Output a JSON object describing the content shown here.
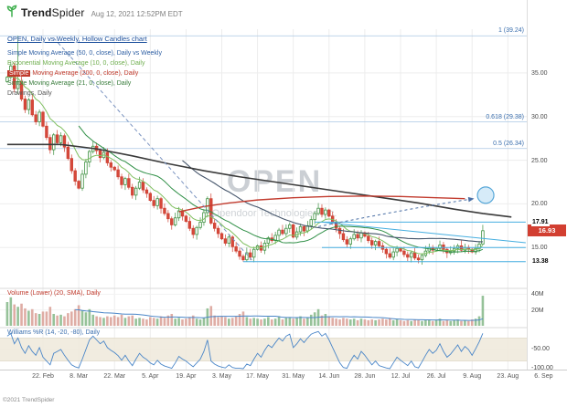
{
  "header": {
    "logo_bold": "Trend",
    "logo_rest": "Spider",
    "timestamp": "Aug 12, 2021 12:52PM EDT"
  },
  "footer": {
    "copyright": "©2021 TrendSpider"
  },
  "chart_labels": {
    "symbol_row": "OPEN, Daily vs Weekly, Hollow Candles chart",
    "indicators": [
      {
        "label": "Simple Moving Average (50, 0, close), Daily vs Weekly",
        "color": "#2e5fa3",
        "highlight": false
      },
      {
        "label": "Exponential Moving Average (10, 0, close), Daily",
        "color": "#6fae4e",
        "highlight": false
      },
      {
        "label": "Simple Moving Average (200, 0, close), Daily",
        "color": "#c0392b",
        "highlight": true
      },
      {
        "label": "Simple Moving Average (21, 0, close), Daily",
        "color": "#357a38",
        "highlight": false
      },
      {
        "label": "Drawings, Daily",
        "color": "#555555",
        "highlight": false
      }
    ],
    "volume_label": "Volume (Lower) (20, SMA), Daily",
    "wpr_label": "Williams %R (14, -20, -80), Daily"
  },
  "watermark": {
    "big": "OPEN",
    "small": "Opendoor Technologies Inc."
  },
  "chart_data": {
    "type": "candlestick",
    "title": "OPEN, Daily vs Weekly, Hollow Candles chart",
    "symbol": "OPEN",
    "last_price": 16.93,
    "last_price_label": "16.93",
    "ylim_price": [
      12,
      40
    ],
    "ylim_volume_m": [
      0,
      45
    ],
    "ylim_wpr": [
      -100,
      0
    ],
    "wpr_bands": [
      -20,
      -80
    ],
    "price_ticks": [
      {
        "p": 35,
        "label": "35.00"
      },
      {
        "p": 30,
        "label": "30.00"
      },
      {
        "p": 25,
        "label": "25.00"
      },
      {
        "p": 20,
        "label": "20.00"
      },
      {
        "p": 15,
        "label": "15.00"
      }
    ],
    "special_price_labels": [
      {
        "p": 17.91,
        "label": "17.91"
      },
      {
        "p": 13.38,
        "label": "13.38"
      }
    ],
    "volume_ticks": [
      {
        "v": 40,
        "label": "40M"
      },
      {
        "v": 20,
        "label": "20M"
      }
    ],
    "wpr_ticks": [
      {
        "w": -50,
        "label": "-50.00"
      },
      {
        "w": -100,
        "label": "-100.00"
      }
    ],
    "x_ticks": [
      {
        "d": 10,
        "label": "22. Feb"
      },
      {
        "d": 20,
        "label": "8. Mar"
      },
      {
        "d": 30,
        "label": "22. Mar"
      },
      {
        "d": 40,
        "label": "5. Apr"
      },
      {
        "d": 50,
        "label": "19. Apr"
      },
      {
        "d": 60,
        "label": "3. May"
      },
      {
        "d": 70,
        "label": "17. May"
      },
      {
        "d": 80,
        "label": "31. May"
      },
      {
        "d": 90,
        "label": "14. Jun"
      },
      {
        "d": 100,
        "label": "28. Jun"
      },
      {
        "d": 110,
        "label": "12. Jul"
      },
      {
        "d": 120,
        "label": "26. Jul"
      },
      {
        "d": 130,
        "label": "9. Aug"
      },
      {
        "d": 140,
        "label": "23. Aug"
      },
      {
        "d": 150,
        "label": "6. Sep"
      }
    ],
    "fib_levels": [
      {
        "p": 39.24,
        "label": "1 (39.24)"
      },
      {
        "p": 29.38,
        "label": "0.618 (29.38)"
      },
      {
        "p": 26.34,
        "label": "0.5 (26.34)"
      }
    ],
    "closes": [
      34.5,
      35.8,
      33.2,
      34.0,
      32.0,
      30.8,
      31.9,
      30.2,
      29.4,
      30.5,
      28.9,
      27.6,
      26.2,
      27.9,
      27.0,
      27.8,
      26.5,
      25.2,
      23.8,
      22.6,
      21.8,
      23.4,
      24.8,
      26.0,
      26.6,
      26.1,
      25.3,
      25.9,
      24.7,
      24.2,
      23.9,
      23.1,
      22.2,
      22.9,
      21.9,
      21.0,
      21.8,
      22.5,
      21.6,
      21.2,
      20.4,
      19.8,
      20.6,
      19.5,
      18.9,
      18.3,
      17.6,
      18.4,
      19.2,
      18.6,
      18.0,
      17.2,
      16.5,
      17.3,
      17.9,
      19.0,
      20.6,
      17.8,
      17.2,
      16.6,
      16.0,
      15.5,
      16.2,
      15.1,
      14.6,
      14.0,
      13.6,
      14.4,
      13.9,
      14.8,
      15.2,
      14.7,
      15.5,
      16.1,
      15.8,
      16.4,
      17.0,
      16.6,
      17.2,
      17.6,
      16.2,
      16.8,
      17.4,
      16.9,
      17.5,
      18.2,
      18.9,
      19.5,
      18.8,
      19.3,
      18.6,
      17.9,
      17.2,
      16.6,
      15.9,
      15.4,
      16.0,
      16.5,
      16.1,
      16.7,
      16.3,
      15.8,
      15.3,
      15.7,
      15.2,
      14.8,
      14.3,
      13.9,
      14.5,
      14.9,
      14.6,
      14.2,
      13.9,
      14.4,
      13.8,
      13.6,
      14.1,
      14.6,
      15.0,
      14.7,
      14.9,
      15.3,
      14.8,
      14.4,
      14.6,
      14.9,
      15.2,
      14.7,
      15.0,
      14.8,
      14.5,
      14.9,
      15.4,
      16.93
    ],
    "overrides": {
      "3": {
        "high": 39.24
      },
      "66": {
        "low": 13.38
      },
      "133": {
        "high": 17.6,
        "low": 15.3
      }
    },
    "volumes_m": [
      30,
      36,
      27,
      24,
      28,
      22,
      19,
      21,
      16,
      15,
      18,
      18,
      24,
      15,
      13,
      14,
      12,
      16,
      18,
      21,
      26,
      19,
      17,
      21,
      14,
      12,
      11,
      10,
      12,
      11,
      13,
      11,
      14,
      10,
      12,
      13,
      9,
      10,
      9,
      8,
      11,
      10,
      9,
      12,
      10,
      13,
      15,
      9,
      10,
      8,
      9,
      11,
      13,
      9,
      8,
      10,
      22,
      25,
      13,
      11,
      12,
      11,
      9,
      10,
      12,
      15,
      18,
      11,
      9,
      10,
      9,
      8,
      9,
      11,
      8,
      9,
      12,
      8,
      10,
      11,
      9,
      10,
      12,
      9,
      11,
      14,
      17,
      21,
      13,
      15,
      12,
      10,
      9,
      8,
      10,
      9,
      8,
      9,
      7,
      9,
      8,
      7,
      8,
      7,
      8,
      9,
      8,
      10,
      7,
      8,
      7,
      6,
      7,
      6,
      8,
      7,
      6,
      7,
      8,
      6,
      7,
      9,
      6,
      7,
      6,
      7,
      8,
      6,
      7,
      6,
      8,
      9,
      12,
      38
    ],
    "williams_r": [
      -15,
      -8,
      -35,
      -20,
      -45,
      -60,
      -40,
      -55,
      -65,
      -45,
      -70,
      -80,
      -90,
      -60,
      -55,
      -50,
      -65,
      -78,
      -90,
      -95,
      -98,
      -75,
      -50,
      -25,
      -15,
      -25,
      -35,
      -28,
      -45,
      -52,
      -58,
      -66,
      -78,
      -65,
      -80,
      -92,
      -75,
      -60,
      -70,
      -76,
      -85,
      -90,
      -78,
      -88,
      -93,
      -96,
      -99,
      -85,
      -68,
      -75,
      -80,
      -88,
      -95,
      -85,
      -75,
      -55,
      -25,
      -80,
      -88,
      -93,
      -96,
      -98,
      -90,
      -97,
      -99,
      -99,
      -100,
      -88,
      -92,
      -75,
      -60,
      -70,
      -52,
      -38,
      -45,
      -32,
      -20,
      -28,
      -15,
      -10,
      -45,
      -35,
      -22,
      -32,
      -20,
      -10,
      -6,
      -3,
      -15,
      -8,
      -25,
      -45,
      -65,
      -85,
      -97,
      -99,
      -80,
      -65,
      -75,
      -55,
      -65,
      -78,
      -90,
      -80,
      -92,
      -95,
      -98,
      -100,
      -85,
      -70,
      -78,
      -85,
      -92,
      -80,
      -95,
      -98,
      -82,
      -65,
      -50,
      -60,
      -52,
      -35,
      -55,
      -70,
      -62,
      -50,
      -38,
      -55,
      -42,
      -50,
      -65,
      -48,
      -30,
      -8
    ],
    "overlays": [
      {
        "name": "sma50-weekly-line",
        "color": "#3a3a3a",
        "width": 1.6,
        "dash": "",
        "interactable": false,
        "points": [
          [
            0,
            26.8
          ],
          [
            15,
            26.8
          ],
          [
            25,
            26.3
          ],
          [
            35,
            25.5
          ],
          [
            45,
            24.6
          ],
          [
            55,
            23.8
          ],
          [
            65,
            23.1
          ],
          [
            75,
            22.5
          ],
          [
            85,
            21.9
          ],
          [
            95,
            21.3
          ],
          [
            105,
            20.7
          ],
          [
            115,
            20.1
          ],
          [
            125,
            19.4
          ],
          [
            133,
            18.9
          ],
          [
            141,
            18.5
          ]
        ]
      },
      {
        "name": "sma200-line",
        "color": "#c23b2e",
        "width": 1.4,
        "dash": "",
        "interactable": false,
        "points": [
          [
            48,
            19.1
          ],
          [
            55,
            19.7
          ],
          [
            62,
            20.1
          ],
          [
            70,
            20.45
          ],
          [
            80,
            20.7
          ],
          [
            90,
            20.85
          ],
          [
            100,
            20.9
          ],
          [
            110,
            20.85
          ],
          [
            120,
            20.7
          ],
          [
            128,
            20.6
          ]
        ]
      },
      {
        "name": "downtrend-dashed-line",
        "color": "#7a93c0",
        "width": 1,
        "dash": "4,3",
        "interactable": true,
        "points": [
          [
            13,
            39.0
          ],
          [
            69,
            13.3
          ]
        ]
      },
      {
        "name": "resistance-line-1791",
        "color": "#45aee0",
        "width": 1,
        "dash": "",
        "interactable": true,
        "points": [
          [
            86,
            17.91
          ],
          [
            145,
            17.91
          ]
        ]
      },
      {
        "name": "descending-trendline",
        "color": "#45aee0",
        "width": 1,
        "dash": "",
        "interactable": true,
        "points": [
          [
            88,
            17.91
          ],
          [
            145,
            15.55
          ]
        ]
      },
      {
        "name": "support-line-15",
        "color": "#45aee0",
        "width": 1,
        "dash": "",
        "interactable": true,
        "points": [
          [
            88,
            15.0
          ],
          [
            145,
            15.0
          ]
        ]
      },
      {
        "name": "support-line-1338",
        "color": "#45aee0",
        "width": 1,
        "dash": "",
        "interactable": true,
        "points": [
          [
            66,
            13.38
          ],
          [
            145,
            13.38
          ]
        ]
      }
    ],
    "annotation": {
      "circle": {
        "d": 133.8,
        "p": 21.0,
        "r": 9
      },
      "arrow": {
        "from": [
          87,
          17.4
        ],
        "mid": [
          114,
          19.6
        ],
        "to": [
          130.6,
          20.6
        ]
      }
    },
    "colors": {
      "up": "#3f9142",
      "down": "#cf4335",
      "up_fill": "#ffffff",
      "down_fill": "#d6483a",
      "vol_up": "#8bbb8e",
      "vol_down": "#dba49b",
      "vol_sma": "#4a86c8",
      "wpr_line": "#4a86c8",
      "wpr_band": "#efe9db",
      "fib_line": "#aac7e4",
      "ema10": "#7fbf5f",
      "sma21": "#2f8f46",
      "sma50_daily": "#44546a",
      "arrow": "#4a6fa5",
      "circle_fill": "#cfe8f7",
      "circle_stroke": "#57a7d8",
      "badge": "#d23f31",
      "logo_green": "#3faf4e"
    }
  }
}
